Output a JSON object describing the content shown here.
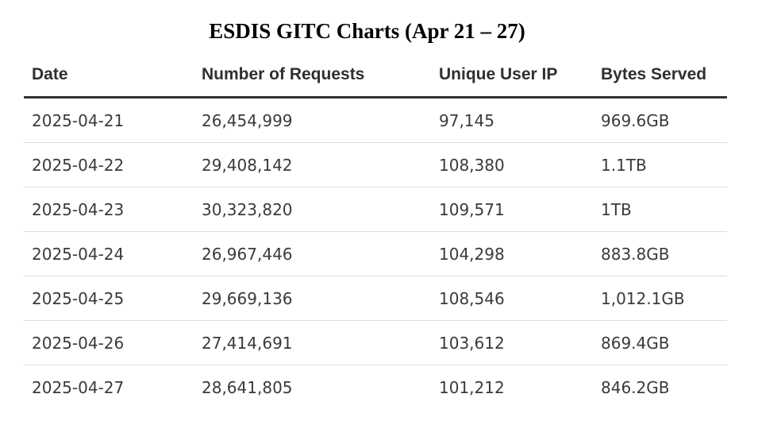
{
  "title": "ESDIS GITC Charts (Apr 21 – 27)",
  "table": {
    "headers": [
      "Date",
      "Number of Requests",
      "Unique User IP",
      "Bytes Served"
    ],
    "rows": [
      [
        "2025-04-21",
        "26,454,999",
        "97,145",
        "969.6GB"
      ],
      [
        "2025-04-22",
        "29,408,142",
        "108,380",
        "1.1TB"
      ],
      [
        "2025-04-23",
        "30,323,820",
        "109,571",
        "1TB"
      ],
      [
        "2025-04-24",
        "26,967,446",
        "104,298",
        "883.8GB"
      ],
      [
        "2025-04-25",
        "29,669,136",
        "108,546",
        "1,012.1GB"
      ],
      [
        "2025-04-26",
        "27,414,691",
        "103,612",
        "869.4GB"
      ],
      [
        "2025-04-27",
        "28,641,805",
        "101,212",
        "846.2GB"
      ]
    ]
  }
}
